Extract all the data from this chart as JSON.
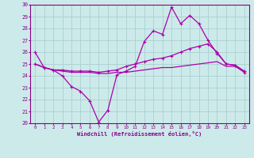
{
  "xlabel": "Windchill (Refroidissement éolien,°C)",
  "xlim": [
    -0.5,
    23.5
  ],
  "ylim": [
    20,
    30
  ],
  "yticks": [
    20,
    21,
    22,
    23,
    24,
    25,
    26,
    27,
    28,
    29,
    30
  ],
  "xticks": [
    0,
    1,
    2,
    3,
    4,
    5,
    6,
    7,
    8,
    9,
    10,
    11,
    12,
    13,
    14,
    15,
    16,
    17,
    18,
    19,
    20,
    21,
    22,
    23
  ],
  "background_color": "#cdeaea",
  "grid_color": "#aacfcf",
  "line_color": "#aa00aa",
  "line1_y": [
    26.0,
    24.7,
    24.5,
    24.0,
    23.1,
    22.7,
    21.9,
    20.1,
    21.1,
    24.1,
    24.4,
    24.8,
    26.9,
    27.8,
    27.5,
    29.8,
    28.4,
    29.1,
    28.4,
    27.0,
    25.9,
    25.0,
    24.9,
    24.3
  ],
  "line2_y": [
    25.0,
    24.7,
    24.5,
    24.5,
    24.4,
    24.4,
    24.4,
    24.3,
    24.4,
    24.5,
    24.8,
    25.0,
    25.2,
    25.4,
    25.5,
    25.7,
    26.0,
    26.3,
    26.5,
    26.7,
    26.0,
    25.0,
    24.9,
    24.4
  ],
  "line3_y": [
    25.0,
    24.7,
    24.5,
    24.4,
    24.3,
    24.3,
    24.3,
    24.2,
    24.2,
    24.3,
    24.3,
    24.4,
    24.5,
    24.6,
    24.7,
    24.7,
    24.8,
    24.9,
    25.0,
    25.1,
    25.2,
    24.8,
    24.8,
    24.3
  ]
}
